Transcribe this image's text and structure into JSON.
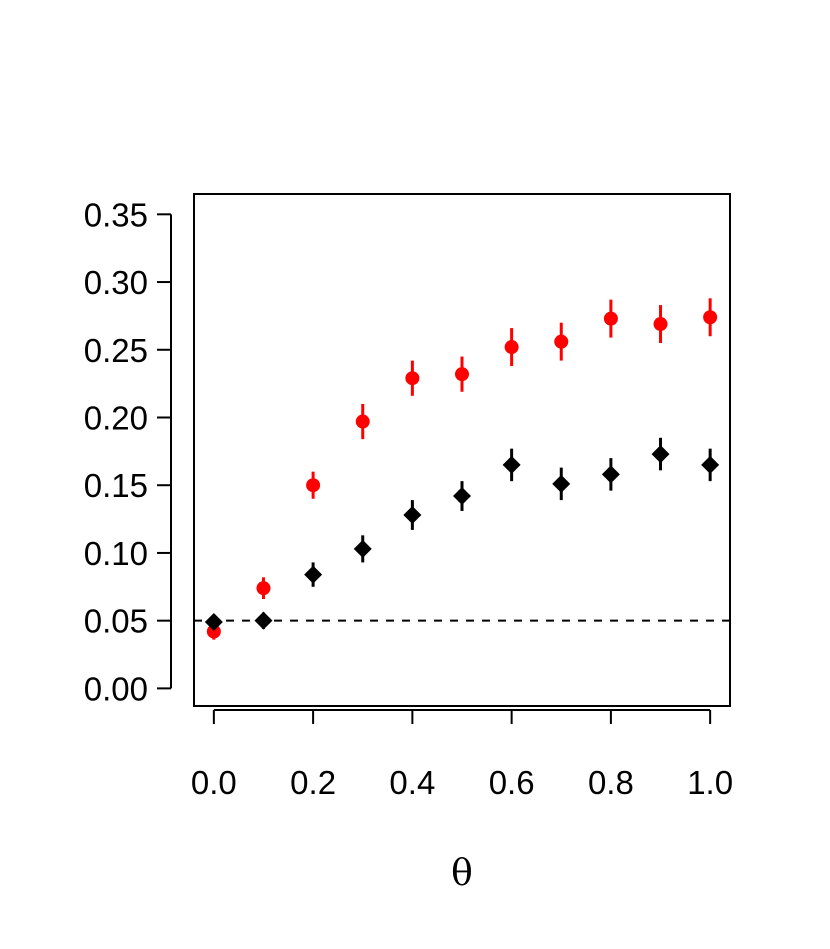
{
  "chart_data": {
    "type": "scatter",
    "title": "",
    "xlabel": "θ",
    "ylabel": "",
    "xlim": [
      -0.04,
      1.04
    ],
    "ylim": [
      -0.013,
      0.365
    ],
    "x_ticks": [
      "0.0",
      "0.2",
      "0.4",
      "0.6",
      "0.8",
      "1.0"
    ],
    "y_ticks": [
      "0.00",
      "0.05",
      "0.10",
      "0.15",
      "0.20",
      "0.25",
      "0.30",
      "0.35"
    ],
    "grid": false,
    "legend": "none",
    "reference_line": {
      "y": 0.05,
      "style": "dashed",
      "color": "#000000"
    },
    "x": [
      0.0,
      0.1,
      0.2,
      0.3,
      0.4,
      0.5,
      0.6,
      0.7,
      0.8,
      0.9,
      1.0
    ],
    "series": [
      {
        "marker": "circle",
        "color": "#ff0000",
        "values": [
          0.042,
          0.074,
          0.15,
          0.197,
          0.229,
          0.232,
          0.252,
          0.256,
          0.273,
          0.269,
          0.274
        ],
        "err": [
          0.006,
          0.008,
          0.01,
          0.013,
          0.013,
          0.013,
          0.014,
          0.014,
          0.014,
          0.014,
          0.014
        ]
      },
      {
        "marker": "diamond",
        "color": "#000000",
        "values": [
          0.049,
          0.05,
          0.084,
          0.103,
          0.128,
          0.142,
          0.165,
          0.151,
          0.158,
          0.173,
          0.165
        ],
        "err": [
          0.005,
          0.006,
          0.009,
          0.01,
          0.011,
          0.011,
          0.012,
          0.012,
          0.012,
          0.012,
          0.012
        ]
      }
    ]
  }
}
